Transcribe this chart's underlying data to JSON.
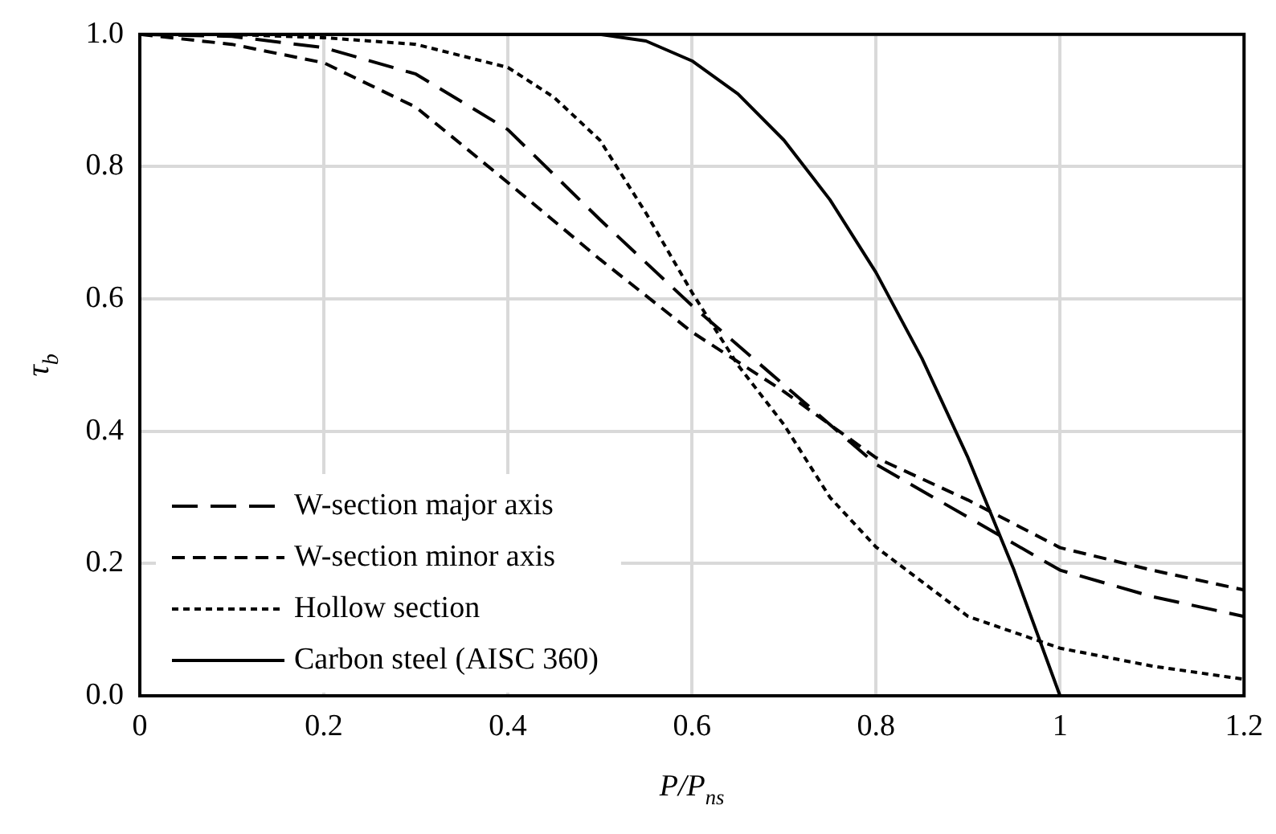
{
  "chart_data": {
    "type": "line",
    "xlabel": "P/P$_{ns}$",
    "ylabel": "τ$_{b}$",
    "xlim": [
      0,
      1.2
    ],
    "xticks": [
      0,
      0.2,
      0.4,
      0.6,
      0.8,
      1,
      1.2
    ],
    "ylim": [
      0,
      1
    ],
    "yticks": [
      {
        "value": 0,
        "label": "0.0"
      },
      0.2,
      0.4,
      0.6,
      0.8,
      {
        "value": 1,
        "label": "1.0"
      }
    ],
    "grid": true,
    "legend": "bottom left",
    "marker": "none",
    "series": [
      {
        "name": "W-section major axis",
        "color": "#000000",
        "line_style": "dashed",
        "x": [
          0,
          0.1,
          0.2,
          0.3,
          0.4,
          0.5,
          0.6,
          0.7,
          0.8,
          0.9,
          1,
          1.1,
          1.2
        ],
        "values": [
          1,
          0.997,
          0.98,
          0.94,
          0.856,
          0.72,
          0.59,
          0.47,
          0.35,
          0.27,
          0.19,
          0.15,
          0.12
        ]
      },
      {
        "name": "W-section minor axis",
        "color": "#000000",
        "line_style": "dashed",
        "x": [
          0,
          0.1,
          0.2,
          0.3,
          0.4,
          0.5,
          0.6,
          0.7,
          0.8,
          0.9,
          1,
          1.1,
          1.2
        ],
        "values": [
          1,
          0.985,
          0.957,
          0.89,
          0.776,
          0.66,
          0.55,
          0.46,
          0.36,
          0.296,
          0.224,
          0.19,
          0.16
        ]
      },
      {
        "name": "Hollow section",
        "color": "#000000",
        "line_style": "dotted",
        "x": [
          0,
          0.1,
          0.2,
          0.3,
          0.4,
          0.45,
          0.5,
          0.55,
          0.6,
          0.65,
          0.7,
          0.75,
          0.8,
          0.9,
          1,
          1.1,
          1.2
        ],
        "values": [
          1,
          1,
          0.995,
          0.985,
          0.95,
          0.905,
          0.84,
          0.73,
          0.61,
          0.5,
          0.41,
          0.3,
          0.225,
          0.12,
          0.072,
          0.045,
          0.025
        ]
      },
      {
        "name": "Carbon steel (AISC 360)",
        "color": "#000000",
        "line_style": "solid",
        "x": [
          0,
          0.5,
          0.55,
          0.6,
          0.65,
          0.7,
          0.75,
          0.8,
          0.85,
          0.9,
          0.95,
          1
        ],
        "values": [
          1,
          1,
          0.99,
          0.96,
          0.91,
          0.84,
          0.75,
          0.64,
          0.51,
          0.36,
          0.19,
          0
        ]
      }
    ]
  }
}
